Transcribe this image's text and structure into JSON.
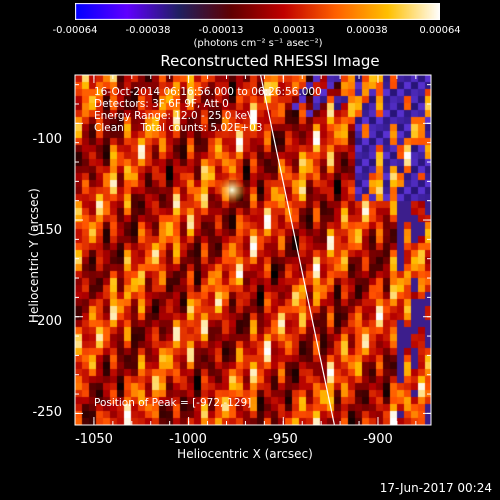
{
  "colorbar": {
    "ticks": [
      "-0.00064",
      "-0.00038",
      "-0.00013",
      "0.00013",
      "0.00038",
      "0.00064"
    ],
    "tick_values": [
      -0.00064,
      -0.00038,
      -0.00013,
      0.00013,
      0.00038,
      0.00064
    ],
    "range": [
      -0.00064,
      0.00064
    ],
    "unit_label": "(photons cm⁻² s⁻¹ asec⁻²)",
    "colors": [
      "#0000ff",
      "#6000ff",
      "#202060",
      "#600000",
      "#c00000",
      "#ff6000",
      "#ffc000",
      "#ffffff"
    ]
  },
  "chart_data": {
    "type": "heatmap",
    "title": "Reconstructed RHESSI Image",
    "xlabel": "Heliocentric X (arcsec)",
    "ylabel": "Heliocentric Y (arcsec)",
    "xlim": [
      -1060,
      -872
    ],
    "ylim": [
      -256,
      -75
    ],
    "xticks": [
      -1050,
      -1000,
      -950,
      -900
    ],
    "yticks": [
      -100,
      -150,
      -200,
      -250
    ],
    "xtick_labels": [
      "-1050",
      "-1000",
      "-950",
      "-900"
    ],
    "ytick_labels": [
      "-100",
      "-150",
      "-200",
      "-250"
    ],
    "annotations": [
      "16-Oct-2014 06:16:56.000 to 06:26:56.000",
      "Detectors: 3F 6F 9F, Att 0",
      "Energy Range: 12.0 - 25.0 keV",
      "Clean     Total counts: 5.02E+03"
    ],
    "peak_label": "Position of Peak = [-972,-129]",
    "peak": [
      -972,
      -129
    ],
    "limb_line": {
      "color": "#ffffff",
      "points": [
        [
          -962,
          -75
        ],
        [
          -923,
          -256
        ]
      ]
    }
  },
  "footer_timestamp": "17-Jun-2017 00:24"
}
